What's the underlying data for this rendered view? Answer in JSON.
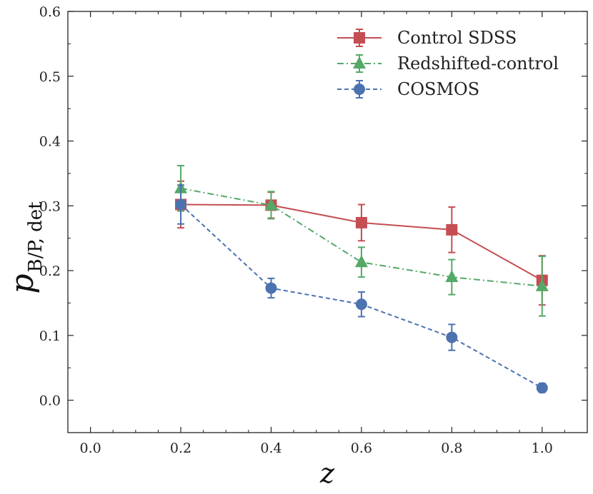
{
  "chart_data": {
    "type": "line",
    "xlabel": "z",
    "ylabel": "p",
    "ylabel_sub": "B/P, det",
    "xlim": [
      -0.05,
      1.1
    ],
    "ylim": [
      -0.05,
      0.6
    ],
    "xticks": [
      "0.0",
      "0.2",
      "0.4",
      "0.6",
      "0.8",
      "1.0"
    ],
    "xtick_values": [
      0.0,
      0.2,
      0.4,
      0.6,
      0.8,
      1.0
    ],
    "yticks": [
      "0.0",
      "0.1",
      "0.2",
      "0.3",
      "0.4",
      "0.5",
      "0.6"
    ],
    "ytick_values": [
      0.0,
      0.1,
      0.2,
      0.3,
      0.4,
      0.5,
      0.6
    ],
    "grid": false,
    "legend_position": "top-right",
    "series": [
      {
        "name": "Control SDSS",
        "color": "#c44e52",
        "marker": "square",
        "linestyle": "solid",
        "x": [
          0.2,
          0.4,
          0.6,
          0.8,
          1.0
        ],
        "y": [
          0.302,
          0.301,
          0.274,
          0.263,
          0.185
        ],
        "yerr": [
          0.036,
          0.02,
          0.028,
          0.035,
          0.038
        ]
      },
      {
        "name": "Redshifted-control",
        "color": "#55a868",
        "marker": "triangle",
        "linestyle": "dashdot",
        "x": [
          0.2,
          0.4,
          0.6,
          0.8,
          1.0
        ],
        "y": [
          0.327,
          0.301,
          0.213,
          0.19,
          0.176
        ],
        "yerr": [
          0.035,
          0.021,
          0.023,
          0.027,
          0.046
        ]
      },
      {
        "name": "COSMOS",
        "color": "#4c72b0",
        "marker": "circle",
        "linestyle": "dashed",
        "x": [
          0.2,
          0.4,
          0.6,
          0.8,
          1.0
        ],
        "y": [
          0.302,
          0.173,
          0.148,
          0.097,
          0.019
        ],
        "yerr": [
          0.03,
          0.015,
          0.019,
          0.02,
          0.007
        ]
      }
    ]
  }
}
